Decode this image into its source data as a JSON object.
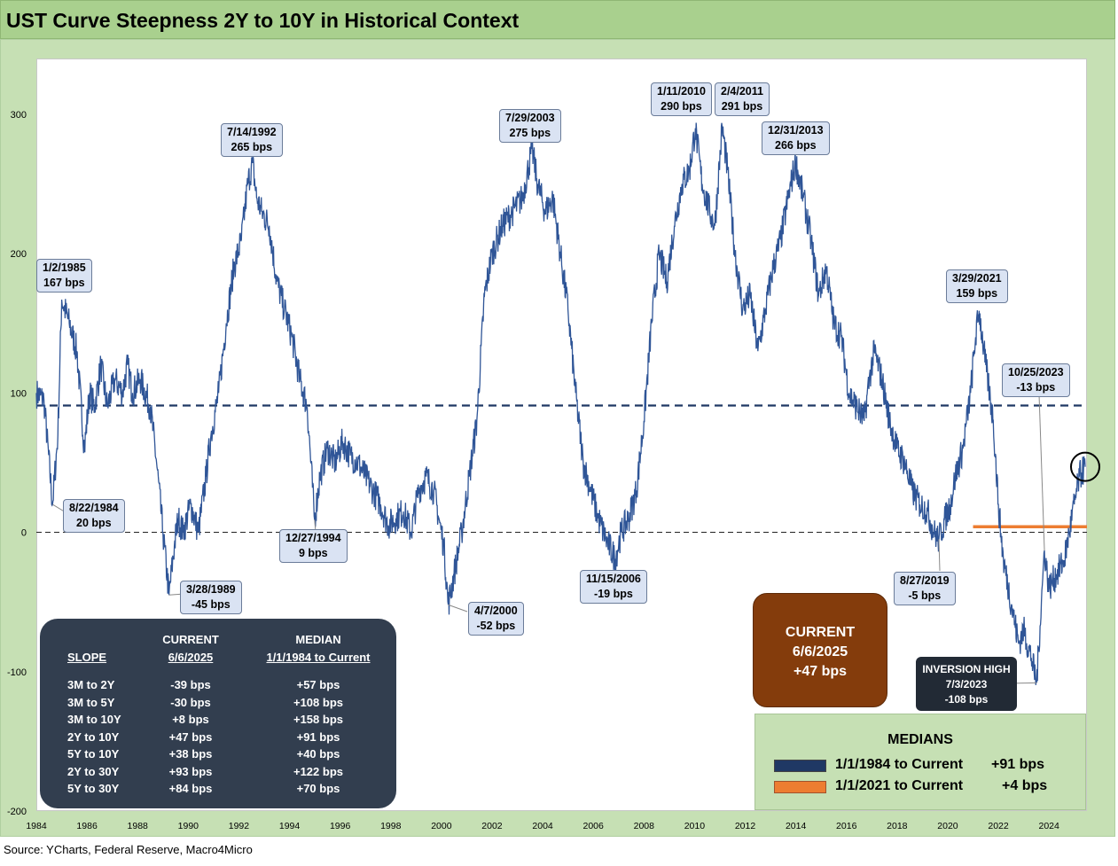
{
  "header": {
    "title": "UST Curve Steepness 2Y to 10Y in Historical Context"
  },
  "source": "Source: YCharts, Federal Reserve, Macro4Micro",
  "colors": {
    "series": "#2f5597",
    "median_full": "#1f3864",
    "median_recent": "#ed7d31",
    "header": "#a9d08e",
    "frame": "#c6e0b4"
  },
  "chart_data": {
    "type": "line",
    "title": "UST Curve Steepness 2Y to 10Y in Historical Context",
    "xlabel": "",
    "ylabel": "",
    "xlim": [
      1984.0,
      2025.5
    ],
    "ylim": [
      -200,
      340
    ],
    "yticks": [
      -200,
      -100,
      0,
      100,
      200,
      300
    ],
    "xticks": [
      1984,
      1986,
      1988,
      1990,
      1992,
      1994,
      1996,
      1998,
      2000,
      2002,
      2004,
      2006,
      2008,
      2010,
      2012,
      2014,
      2016,
      2018,
      2020,
      2022,
      2024
    ],
    "grid": false,
    "series": [
      {
        "name": "2Y to 10Y",
        "x": [
          1984.0,
          1984.3,
          1984.64,
          1984.85,
          1985.0,
          1985.3,
          1985.6,
          1985.9,
          1986.1,
          1986.3,
          1986.55,
          1986.8,
          1987.1,
          1987.4,
          1987.6,
          1987.8,
          1988.1,
          1988.5,
          1988.75,
          1989.0,
          1989.24,
          1989.45,
          1989.6,
          1989.8,
          1990.1,
          1990.4,
          1990.7,
          1990.9,
          1991.2,
          1991.5,
          1991.8,
          1992.1,
          1992.35,
          1992.54,
          1992.7,
          1992.9,
          1993.2,
          1993.5,
          1993.8,
          1994.1,
          1994.4,
          1994.7,
          1994.99,
          1995.2,
          1995.5,
          1995.8,
          1996.1,
          1996.4,
          1996.7,
          1997.0,
          1997.3,
          1997.6,
          1997.9,
          1998.2,
          1998.5,
          1998.8,
          1999.1,
          1999.4,
          1999.7,
          1999.9,
          2000.1,
          2000.27,
          2000.5,
          2000.8,
          2001.1,
          2001.4,
          2001.7,
          2002.0,
          2002.4,
          2002.8,
          2003.2,
          2003.58,
          2003.8,
          2004.1,
          2004.4,
          2004.7,
          2005.0,
          2005.3,
          2005.6,
          2005.9,
          2006.2,
          2006.5,
          2006.87,
          2007.1,
          2007.4,
          2007.7,
          2008.0,
          2008.3,
          2008.6,
          2008.9,
          2009.2,
          2009.5,
          2009.8,
          2010.03,
          2010.3,
          2010.6,
          2010.8,
          2011.09,
          2011.3,
          2011.6,
          2011.9,
          2012.2,
          2012.5,
          2012.8,
          2013.1,
          2013.4,
          2013.7,
          2013.99,
          2014.3,
          2014.6,
          2014.9,
          2015.2,
          2015.5,
          2015.8,
          2016.1,
          2016.4,
          2016.7,
          2016.9,
          2017.1,
          2017.4,
          2017.7,
          2018.0,
          2018.3,
          2018.6,
          2018.9,
          2019.2,
          2019.45,
          2019.65,
          2019.9,
          2020.1,
          2020.3,
          2020.6,
          2020.9,
          2021.1,
          2021.24,
          2021.5,
          2021.8,
          2022.0,
          2022.2,
          2022.4,
          2022.6,
          2022.8,
          2023.0,
          2023.3,
          2023.51,
          2023.7,
          2023.82,
          2024.0,
          2024.3,
          2024.6,
          2024.8,
          2025.0,
          2025.2,
          2025.43
        ],
        "values": [
          100,
          95,
          20,
          70,
          167,
          150,
          130,
          60,
          100,
          90,
          120,
          90,
          110,
          100,
          120,
          100,
          110,
          90,
          50,
          0,
          -45,
          -10,
          10,
          0,
          20,
          0,
          40,
          70,
          100,
          150,
          190,
          210,
          250,
          265,
          240,
          230,
          220,
          180,
          160,
          140,
          110,
          90,
          9,
          40,
          60,
          50,
          65,
          55,
          50,
          40,
          30,
          20,
          5,
          10,
          15,
          0,
          30,
          40,
          30,
          10,
          -10,
          -52,
          -30,
          0,
          40,
          80,
          170,
          200,
          220,
          230,
          240,
          275,
          250,
          230,
          240,
          200,
          160,
          100,
          50,
          30,
          10,
          -5,
          -19,
          0,
          10,
          30,
          80,
          150,
          200,
          180,
          220,
          250,
          260,
          290,
          250,
          230,
          220,
          291,
          260,
          200,
          160,
          170,
          130,
          160,
          190,
          210,
          240,
          266,
          240,
          210,
          170,
          190,
          150,
          140,
          100,
          90,
          80,
          110,
          130,
          110,
          80,
          60,
          50,
          30,
          20,
          15,
          0,
          -5,
          10,
          20,
          40,
          60,
          100,
          140,
          159,
          120,
          80,
          20,
          -20,
          -40,
          -60,
          -80,
          -70,
          -90,
          -108,
          -50,
          -13,
          -40,
          -30,
          -20,
          0,
          20,
          40,
          47
        ]
      },
      {
        "name": "1/1/1984 to Current",
        "value": 91
      },
      {
        "name": "1/1/2021 to Current",
        "value": 4
      }
    ],
    "annotations": [
      {
        "date": "1/2/1985",
        "value": "167 bps",
        "x": 1985.0,
        "y": 167
      },
      {
        "date": "8/22/1984",
        "value": "20 bps",
        "x": 1984.64,
        "y": 20
      },
      {
        "date": "3/28/1989",
        "value": "-45 bps",
        "x": 1989.24,
        "y": -45
      },
      {
        "date": "7/14/1992",
        "value": "265 bps",
        "x": 1992.54,
        "y": 265
      },
      {
        "date": "12/27/1994",
        "value": "9 bps",
        "x": 1994.99,
        "y": 9
      },
      {
        "date": "4/7/2000",
        "value": "-52 bps",
        "x": 2000.27,
        "y": -52
      },
      {
        "date": "7/29/2003",
        "value": "275 bps",
        "x": 2003.58,
        "y": 275
      },
      {
        "date": "11/15/2006",
        "value": "-19 bps",
        "x": 2006.87,
        "y": -19
      },
      {
        "date": "1/11/2010",
        "value": "290 bps",
        "x": 2010.03,
        "y": 290
      },
      {
        "date": "2/4/2011",
        "value": "291 bps",
        "x": 2011.09,
        "y": 291
      },
      {
        "date": "12/31/2013",
        "value": "266 bps",
        "x": 2013.99,
        "y": 266
      },
      {
        "date": "8/27/2019",
        "value": "-5 bps",
        "x": 2019.65,
        "y": -5
      },
      {
        "date": "3/29/2021",
        "value": "159 bps",
        "x": 2021.24,
        "y": 159
      },
      {
        "date": "10/25/2023",
        "value": "-13 bps",
        "x": 2023.82,
        "y": -13
      }
    ],
    "current": {
      "label": "CURRENT",
      "date": "6/6/2025",
      "value": "+47 bps"
    },
    "inversion_high": {
      "label": "INVERSION HIGH",
      "date": "7/3/2023",
      "value": "-108 bps"
    },
    "slope_table": {
      "headers": {
        "col1": "SLOPE",
        "col2_top": "CURRENT",
        "col2": "6/6/2025",
        "col3_top": "MEDIAN",
        "col3": "1/1/1984 to Current"
      },
      "rows": [
        {
          "slope": "3M to 2Y",
          "current": "-39 bps",
          "median": "+57 bps"
        },
        {
          "slope": "3M to 5Y",
          "current": "-30 bps",
          "median": "+108 bps"
        },
        {
          "slope": "3M to 10Y",
          "current": "+8 bps",
          "median": "+158 bps"
        },
        {
          "slope": "2Y to 10Y",
          "current": "+47 bps",
          "median": "+91 bps"
        },
        {
          "slope": "5Y to 10Y",
          "current": "+38 bps",
          "median": "+40 bps"
        },
        {
          "slope": "2Y to 30Y",
          "current": "+93 bps",
          "median": "+122 bps"
        },
        {
          "slope": "5Y to 30Y",
          "current": "+84 bps",
          "median": "+70 bps"
        }
      ]
    },
    "medians": {
      "title": "MEDIANS",
      "items": [
        {
          "label": "1/1/1984 to Current",
          "value": "+91 bps"
        },
        {
          "label": "1/1/2021 to Current",
          "value": "+4 bps"
        }
      ]
    }
  }
}
